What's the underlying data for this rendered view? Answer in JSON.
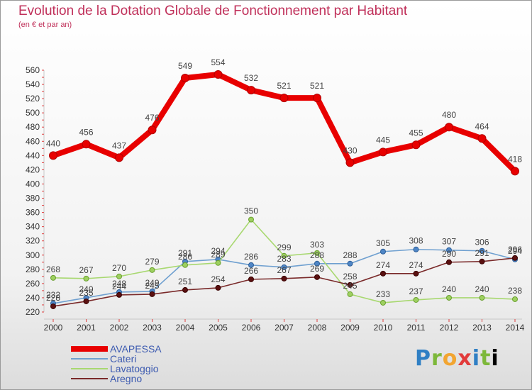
{
  "header": {
    "title": "Evolution de la Dotation Globale de Fonctionnement par Habitant",
    "subtitle": "(en € et par an)"
  },
  "logo": {
    "text": "Proxiti",
    "colors": [
      "#2f7fc4",
      "#7db83a",
      "#f2a531",
      "#e23b3b",
      "#2f7fc4",
      "#7db83a"
    ]
  },
  "chart_data": {
    "type": "line",
    "title": "Evolution de la Dotation Globale de Fonctionnement par Habitant",
    "subtitle": "(en € et par an)",
    "xlabel": "",
    "ylabel": "",
    "x": [
      "2000",
      "2001",
      "2002",
      "2003",
      "2004",
      "2005",
      "2006",
      "2007",
      "2008",
      "2009",
      "2010",
      "2011",
      "2012",
      "2013",
      "2014"
    ],
    "ylim": [
      220,
      560
    ],
    "yticks": [
      220,
      240,
      260,
      280,
      300,
      320,
      340,
      360,
      380,
      400,
      420,
      440,
      460,
      480,
      500,
      520,
      540,
      560
    ],
    "grid": false,
    "legend_position": "bottom-left",
    "series": [
      {
        "name": "AVAPESSA",
        "color": "#e80000",
        "values": [
          440,
          456,
          437,
          476,
          549,
          554,
          532,
          521,
          521,
          430,
          445,
          455,
          480,
          464,
          418
        ]
      },
      {
        "name": "Cateri",
        "color": "#6fa0d0",
        "values": [
          232,
          240,
          248,
          249,
          291,
          294,
          286,
          283,
          288,
          288,
          305,
          308,
          307,
          306,
          294
        ]
      },
      {
        "name": "Lavatoggio",
        "color": "#a8d870",
        "values": [
          268,
          267,
          270,
          279,
          286,
          289,
          350,
          299,
          303,
          245,
          233,
          237,
          240,
          240,
          238
        ]
      },
      {
        "name": "Aregno",
        "color": "#7a2a2a",
        "values": [
          228,
          235,
          244,
          245,
          251,
          254,
          266,
          267,
          269,
          258,
          274,
          274,
          290,
          291,
          296
        ]
      }
    ]
  }
}
